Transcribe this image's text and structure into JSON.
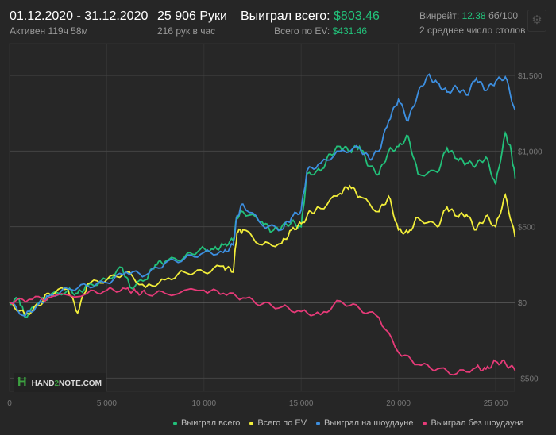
{
  "header": {
    "date_range": "01.12.2020 - 31.12.2020",
    "active": "Активен 119ч 58м",
    "hands": "25 906 Руки",
    "hands_per_hour": "216 рук в час",
    "won_label": "Выиграл всего:",
    "won_value": "$803.46",
    "ev_label": "Всего по EV:",
    "ev_value": "$431.46",
    "winrate_label": "Винрейт:",
    "winrate_value": "12.38",
    "winrate_unit": "бб/100",
    "tables": "2 среднее число столов",
    "gear_icon": "gear-icon"
  },
  "logo": {
    "text_a": "HAND",
    "text_b": "2",
    "text_c": "NOTE.COM"
  },
  "chart_data": {
    "type": "line",
    "xlabel": "",
    "ylabel": "",
    "xlim": [
      0,
      26000
    ],
    "ylim": [
      -600,
      1700
    ],
    "x_ticks": [
      0,
      5000,
      10000,
      15000,
      20000,
      25000
    ],
    "x_tick_labels": [
      "0",
      "5 000",
      "10 000",
      "15 000",
      "20 000",
      "25 000"
    ],
    "y_ticks": [
      -500,
      0,
      500,
      1000,
      1500
    ],
    "y_tick_labels": [
      "-$500",
      "$0",
      "$500",
      "$1,000",
      "$1,500"
    ],
    "legend": "bottom-right",
    "series": [
      {
        "name": "Выиграл всего",
        "color": "#22c17a",
        "x": [
          0,
          500,
          800,
          1500,
          2000,
          3000,
          3500,
          4000,
          5000,
          5800,
          6200,
          7000,
          7500,
          8000,
          9000,
          9800,
          10500,
          11000,
          11500,
          11700,
          12000,
          13000,
          13500,
          14000,
          14500,
          15000,
          15300,
          16000,
          16500,
          17000,
          17500,
          18000,
          18500,
          19000,
          19500,
          20000,
          20500,
          21000,
          22000,
          22500,
          23000,
          23500,
          24000,
          24500,
          25000,
          25500,
          25800,
          26000
        ],
        "y": [
          0,
          20,
          -100,
          0,
          40,
          80,
          60,
          110,
          150,
          230,
          100,
          150,
          250,
          270,
          300,
          350,
          350,
          380,
          410,
          570,
          600,
          530,
          470,
          500,
          530,
          500,
          850,
          870,
          980,
          1030,
          1000,
          1030,
          900,
          850,
          1000,
          1030,
          1100,
          850,
          860,
          1020,
          950,
          920,
          910,
          960,
          780,
          1120,
          1000,
          820
        ]
      },
      {
        "name": "Всего по EV",
        "color": "#f2ee3a",
        "x": [
          0,
          800,
          1500,
          2000,
          3000,
          3500,
          4000,
          5000,
          6000,
          7000,
          8000,
          9000,
          10000,
          11000,
          11500,
          11700,
          12000,
          13000,
          14000,
          14500,
          15000,
          15500,
          16000,
          17000,
          17500,
          18000,
          19000,
          19500,
          20000,
          20500,
          21000,
          22000,
          22500,
          23000,
          23500,
          24000,
          24500,
          25000,
          25500,
          26000
        ],
        "y": [
          0,
          -80,
          -20,
          60,
          90,
          -70,
          120,
          150,
          200,
          100,
          150,
          200,
          200,
          240,
          200,
          460,
          480,
          380,
          390,
          480,
          520,
          600,
          620,
          720,
          770,
          700,
          600,
          700,
          480,
          460,
          560,
          500,
          630,
          570,
          580,
          480,
          570,
          500,
          710,
          430
        ]
      },
      {
        "name": "Выиграл на шоудауне",
        "color": "#3d8fe0",
        "x": [
          0,
          800,
          1500,
          2000,
          3000,
          4000,
          5000,
          6000,
          7000,
          8000,
          9000,
          10000,
          11000,
          11500,
          11700,
          12000,
          13000,
          14000,
          14500,
          15000,
          15300,
          16000,
          17000,
          18000,
          18500,
          19000,
          19500,
          20000,
          20500,
          21000,
          21500,
          22000,
          22500,
          23000,
          23500,
          24000,
          24500,
          25000,
          25500,
          26000
        ],
        "y": [
          0,
          -90,
          -10,
          40,
          90,
          110,
          130,
          200,
          180,
          260,
          290,
          330,
          330,
          380,
          570,
          650,
          510,
          480,
          560,
          610,
          870,
          920,
          1000,
          1020,
          950,
          1000,
          1200,
          1340,
          1200,
          1380,
          1500,
          1450,
          1390,
          1420,
          1370,
          1480,
          1400,
          1460,
          1490,
          1270
        ]
      },
      {
        "name": "Выиграл без шоудауна",
        "color": "#e63a78",
        "x": [
          0,
          1000,
          2000,
          4000,
          5000,
          6000,
          6500,
          7000,
          8000,
          10000,
          11000,
          12000,
          13000,
          14000,
          15000,
          16000,
          17000,
          18000,
          19000,
          20000,
          21000,
          22000,
          23000,
          24000,
          24500,
          25000,
          25500,
          26000
        ],
        "y": [
          0,
          20,
          30,
          60,
          80,
          90,
          70,
          60,
          60,
          80,
          60,
          30,
          -10,
          -30,
          -60,
          -80,
          10,
          -40,
          -100,
          -330,
          -410,
          -440,
          -470,
          -430,
          -440,
          -390,
          -400,
          -450
        ]
      }
    ]
  }
}
